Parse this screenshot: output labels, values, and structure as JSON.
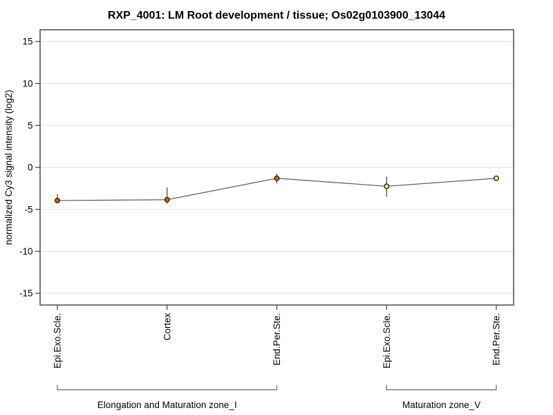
{
  "chart_data": {
    "type": "line",
    "title": "RXP_4001: LM Root development / tissue; Os02g0103900_13044",
    "ylabel": "normalized Cy3 signal intensity (log2)",
    "xlabel": "",
    "ylim": [
      -16.4,
      16.4
    ],
    "yticks": [
      15,
      10,
      5,
      0,
      -5,
      -10,
      -15
    ],
    "grid": "horizontal-only",
    "legend_position": "none",
    "categories": [
      "Epi.Exo.Scle.",
      "Cortex",
      "End.Per.Ste.",
      "Epi.Exo.Scle.",
      "End.Per.Ste."
    ],
    "series": [
      {
        "name": "normalized Cy3 signal intensity (log2)",
        "values": [
          -3.95,
          -3.85,
          -1.3,
          -2.25,
          -1.3
        ],
        "error_high": [
          -3.2,
          -2.4,
          -0.75,
          -1.1,
          -1.15
        ],
        "error_low": [
          -4.25,
          -4.35,
          -1.9,
          -3.5,
          -1.45
        ],
        "point_colors": [
          "#e05f08",
          "#e05f08",
          "#e05f08",
          "#eeee9c",
          "#eeee9c"
        ]
      }
    ],
    "groups": [
      {
        "label": "Elongation and Maturation zone_I",
        "from_index": 0,
        "to_index": 2
      },
      {
        "label": "Maturation zone_V",
        "from_index": 3,
        "to_index": 4
      }
    ],
    "colors": {
      "line": "#5a5a5a",
      "error_bar": "#2a2a2a",
      "marker_outline": "#331f05",
      "plot_border": "#3c3c3c",
      "gridline": "#e4e4e4",
      "bracket": "#7a7a7a",
      "text": "#000000",
      "background": "#ffffff"
    }
  }
}
